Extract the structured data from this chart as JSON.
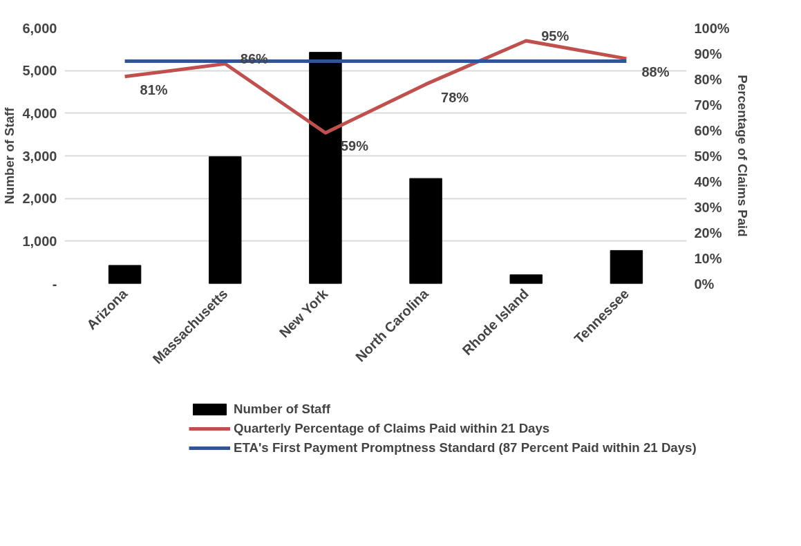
{
  "chart_data": {
    "type": "bar",
    "categories": [
      "Arizona",
      "Massachusetts",
      "New York",
      "North Carolina",
      "Rhode Island",
      "Tennessee"
    ],
    "ylabel": "Number of Staff",
    "y2label": "Percentage of Claims Paid",
    "ylim": [
      0,
      6000
    ],
    "yticks": [
      {
        "value": 0,
        "label": "-"
      },
      {
        "value": 1000,
        "label": "1,000"
      },
      {
        "value": 2000,
        "label": "2,000"
      },
      {
        "value": 3000,
        "label": "3,000"
      },
      {
        "value": 4000,
        "label": "4,000"
      },
      {
        "value": 5000,
        "label": "5,000"
      },
      {
        "value": 6000,
        "label": "6,000"
      }
    ],
    "y2lim": [
      0,
      100
    ],
    "y2ticks": [
      {
        "value": 0,
        "label": "0%"
      },
      {
        "value": 10,
        "label": "10%"
      },
      {
        "value": 20,
        "label": "20%"
      },
      {
        "value": 30,
        "label": "30%"
      },
      {
        "value": 40,
        "label": "40%"
      },
      {
        "value": 50,
        "label": "50%"
      },
      {
        "value": 60,
        "label": "60%"
      },
      {
        "value": 70,
        "label": "70%"
      },
      {
        "value": 80,
        "label": "80%"
      },
      {
        "value": 90,
        "label": "90%"
      },
      {
        "value": 100,
        "label": "100%"
      }
    ],
    "series": [
      {
        "name": "Number of Staff",
        "color": "#000000",
        "values": [
          430,
          2980,
          5430,
          2470,
          210,
          780
        ]
      },
      {
        "name": "Quarterly Percentage of Claims Paid within 21 Days",
        "type": "line",
        "axis": "y2",
        "color": "#c0504d",
        "values": [
          81,
          86,
          59,
          78,
          95,
          88
        ],
        "value_labels": [
          "81%",
          "86%",
          "59%",
          "78%",
          "95%",
          "88%"
        ]
      },
      {
        "name": "ETA's First Payment Promptness Standard (87 Percent Paid within 21 Days)",
        "type": "line",
        "axis": "y2",
        "color": "#2f5597",
        "values": [
          87,
          87,
          87,
          87,
          87,
          87
        ]
      }
    ],
    "grid": "y",
    "legend": "bottom"
  }
}
